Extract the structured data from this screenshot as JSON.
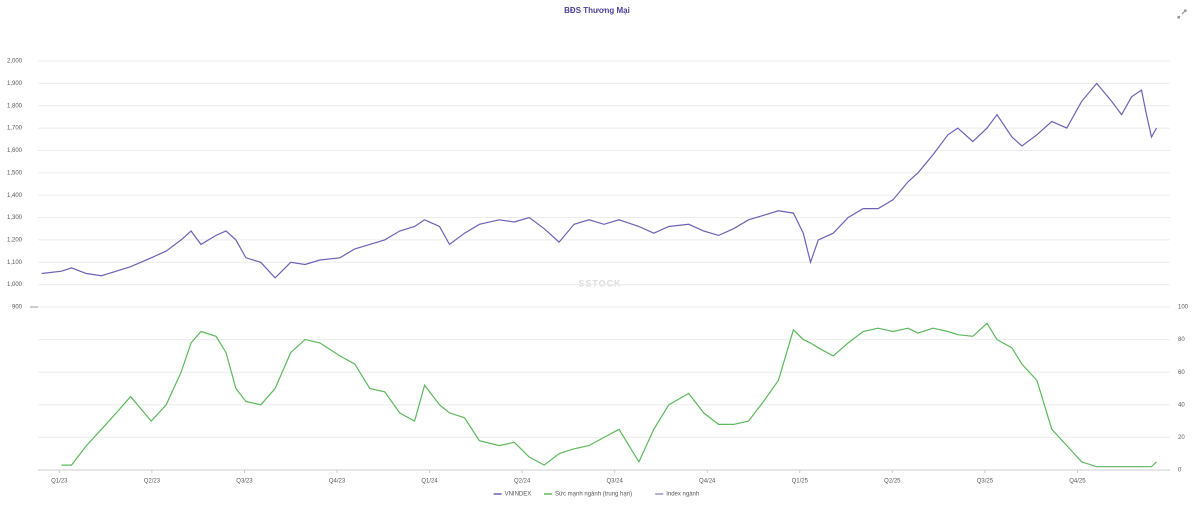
{
  "chart_data": [
    {
      "type": "line",
      "title": "BĐS Thương Mại",
      "watermark": "SSTOCK",
      "x": [
        -2.5,
        0.3,
        1.7,
        3.8,
        5.9,
        8,
        10,
        12.9,
        15,
        17.1,
        18.5,
        19.9,
        22,
        23.4,
        24.8,
        26.2,
        28.3,
        30.3,
        32.5,
        34.5,
        36.6,
        39.4,
        41.5,
        43.6,
        45.7,
        47.8,
        49.9,
        51.3,
        53.4,
        54.8,
        56.9,
        59,
        61.8,
        63.9,
        66,
        68.1,
        70.2,
        72.3,
        74.4,
        76.5,
        78.6,
        81.4,
        83.5,
        85.6,
        88.4,
        90.5,
        92.6,
        94.7,
        96.8,
        98.9,
        101,
        103.1,
        104.5,
        105.5,
        106.6,
        108.7,
        110.8,
        112.9,
        115,
        117.1,
        119.2,
        120.6,
        122.7,
        124.8,
        126.2,
        128.3,
        130.3,
        131.7,
        133.8,
        135.2,
        137.3,
        139.4,
        141.5,
        143.6,
        145.7,
        147.8,
        149.2,
        150.6,
        152,
        152.7,
        153.4,
        154.1
      ],
      "xlim": [
        -3,
        156
      ],
      "ylim": [
        900,
        2000
      ],
      "yticks": [
        900,
        {
          "value": 1000,
          "label": "1,000"
        },
        {
          "value": 1100,
          "label": "1,100"
        },
        {
          "value": 1200,
          "label": "1,200"
        },
        {
          "value": 1300,
          "label": "1,300"
        },
        {
          "value": 1400,
          "label": "1,400"
        },
        {
          "value": 1500,
          "label": "1,500"
        },
        {
          "value": 1600,
          "label": "1,600"
        },
        {
          "value": 1700,
          "label": "1,700"
        },
        {
          "value": 1800,
          "label": "1,800"
        },
        {
          "value": 1900,
          "label": "1,900"
        },
        {
          "value": 2000,
          "label": "2,000"
        }
      ],
      "grid": true,
      "series": [
        {
          "name": "VNINDEX",
          "color": "#6b62b5",
          "values": [
            1050,
            1060,
            1075,
            1050,
            1040,
            1060,
            1080,
            1120,
            1150,
            1200,
            1240,
            1180,
            1220,
            1240,
            1200,
            1120,
            1100,
            1030,
            1100,
            1090,
            1110,
            1120,
            1160,
            1180,
            1200,
            1240,
            1260,
            1290,
            1260,
            1180,
            1230,
            1270,
            1290,
            1280,
            1300,
            1250,
            1190,
            1270,
            1290,
            1270,
            1290,
            1260,
            1230,
            1260,
            1270,
            1240,
            1220,
            1250,
            1290,
            1310,
            1330,
            1320,
            1230,
            1100,
            1200,
            1230,
            1300,
            1340,
            1340,
            1380,
            1460,
            1500,
            1580,
            1670,
            1700,
            1640,
            1700,
            1760,
            1660,
            1620,
            1670,
            1730,
            1700,
            1820,
            1900,
            1820,
            1760,
            1840,
            1870,
            1760,
            1660,
            1700
          ]
        }
      ]
    },
    {
      "type": "line",
      "x": [
        -2.5,
        0.3,
        1.7,
        3.8,
        5.9,
        8,
        10,
        12.9,
        15,
        17.1,
        18.5,
        19.9,
        22,
        23.4,
        24.8,
        26.2,
        28.3,
        30.3,
        32.5,
        34.5,
        36.6,
        39.4,
        41.5,
        43.6,
        45.7,
        47.8,
        49.9,
        51.3,
        53.4,
        54.8,
        56.9,
        59,
        61.8,
        63.9,
        66,
        68.1,
        70.2,
        72.3,
        74.4,
        76.5,
        78.6,
        81.4,
        83.5,
        85.6,
        88.4,
        90.5,
        92.6,
        94.7,
        96.8,
        98.9,
        101,
        103.1,
        104.5,
        105.5,
        106.6,
        108.7,
        110.8,
        112.9,
        115,
        117.1,
        119.2,
        120.6,
        122.7,
        124.8,
        126.2,
        128.3,
        130.3,
        131.7,
        133.8,
        135.2,
        137.3,
        139.4,
        141.5,
        143.6,
        145.7,
        147.8,
        149.2,
        150.6,
        152,
        152.7,
        153.4,
        154.1
      ],
      "xlim": [
        -3,
        156
      ],
      "xticks": [
        {
          "value": 0,
          "label": "Q1/23"
        },
        {
          "value": 13,
          "label": "Q2/23"
        },
        {
          "value": 26,
          "label": "Q3/23"
        },
        {
          "value": 39,
          "label": "Q4/23"
        },
        {
          "value": 52,
          "label": "Q1/24"
        },
        {
          "value": 65,
          "label": "Q2/24"
        },
        {
          "value": 78,
          "label": "Q3/24"
        },
        {
          "value": 91,
          "label": "Q4/24"
        },
        {
          "value": 104,
          "label": "Q1/25"
        },
        {
          "value": 117,
          "label": "Q2/25"
        },
        {
          "value": 130,
          "label": "Q3/25"
        },
        {
          "value": 143,
          "label": "Q4/25"
        }
      ],
      "ylim": [
        0,
        100
      ],
      "yticks": [
        0,
        20,
        40,
        60,
        80,
        100
      ],
      "grid": true,
      "series": [
        {
          "name": "Sức mạnh ngành (trung hạn)",
          "color": "#5cb85c",
          "values": [
            null,
            3,
            3,
            15,
            25,
            35,
            45,
            30,
            40,
            60,
            78,
            85,
            82,
            72,
            50,
            42,
            40,
            50,
            72,
            80,
            78,
            70,
            65,
            50,
            48,
            35,
            30,
            52,
            40,
            35,
            32,
            18,
            15,
            17,
            8,
            3,
            10,
            13,
            15,
            20,
            25,
            5,
            25,
            40,
            47,
            35,
            28,
            28,
            30,
            42,
            55,
            86,
            80,
            78,
            75,
            70,
            78,
            85,
            87,
            85,
            87,
            84,
            87,
            85,
            83,
            82,
            90,
            80,
            75,
            65,
            55,
            25,
            15,
            5,
            2,
            2,
            2,
            2,
            2,
            2,
            2,
            5
          ]
        }
      ],
      "other_legend_entries": [
        {
          "name": "Index ngành",
          "color": "#9b93c9"
        }
      ]
    }
  ]
}
